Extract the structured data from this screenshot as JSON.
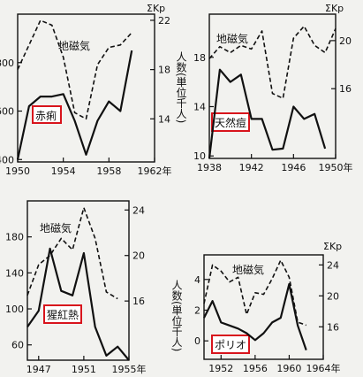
{
  "chart_data": [
    {
      "type": "line",
      "disease_label": "赤痢",
      "geomag_label": "地磁気",
      "right_axis_label": "ΣKp",
      "left_axis_label": "",
      "x_ticks": [
        "1950",
        "1954",
        "1958",
        "1962年"
      ],
      "left_ticks": [
        "400",
        "600",
        "800"
      ],
      "right_ticks": [
        "14",
        "18",
        "22"
      ],
      "xlim": [
        1950,
        1962
      ],
      "ylim_left": [
        390,
        1000
      ],
      "ylim_right": [
        10.5,
        22.5
      ],
      "series": [
        {
          "style": "solid",
          "axis": "left",
          "x": [
            1950,
            1951,
            1952,
            1953,
            1954,
            1955,
            1956,
            1957,
            1958,
            1959,
            1960
          ],
          "values": [
            400,
            620,
            660,
            660,
            670,
            560,
            420,
            560,
            640,
            600,
            850
          ]
        },
        {
          "style": "dashed",
          "axis": "right",
          "x": [
            1950,
            1951,
            1952,
            1953,
            1954,
            1955,
            1956,
            1957,
            1958,
            1959,
            1960
          ],
          "values": [
            18,
            20,
            22,
            21.6,
            19,
            14.5,
            14,
            18.4,
            19.8,
            20,
            21
          ]
        }
      ]
    },
    {
      "type": "line",
      "disease_label": "天然痘",
      "geomag_label": "地磁気",
      "right_axis_label": "ΣKp",
      "left_axis_label": "人数(単位千人)",
      "x_ticks": [
        "1938",
        "1942",
        "1946",
        "1950年"
      ],
      "left_ticks": [
        "10",
        "14",
        "18"
      ],
      "right_ticks": [
        "16",
        "20"
      ],
      "xlim": [
        1938,
        1950
      ],
      "ylim_left": [
        9.8,
        21.5
      ],
      "ylim_right": [
        10.2,
        22.2
      ],
      "series": [
        {
          "style": "solid",
          "axis": "left",
          "x": [
            1938,
            1939,
            1940,
            1941,
            1942,
            1943,
            1944,
            1945,
            1946,
            1947,
            1948,
            1949
          ],
          "values": [
            9.8,
            17,
            16,
            16.6,
            13,
            13,
            10.5,
            10.6,
            14,
            13,
            13.4,
            10.6
          ]
        },
        {
          "style": "dashed",
          "axis": "right",
          "x": [
            1938,
            1939,
            1940,
            1941,
            1942,
            1943,
            1944,
            1945,
            1946,
            1947,
            1948,
            1949,
            1950
          ],
          "values": [
            18.5,
            19.5,
            19,
            19.6,
            19.3,
            20.8,
            15.6,
            15.2,
            20.2,
            21.2,
            19.6,
            19,
            21
          ]
        }
      ]
    },
    {
      "type": "line",
      "disease_label": "猩紅熱",
      "geomag_label": "地磁気",
      "right_axis_label": "",
      "left_axis_label": "",
      "x_ticks": [
        "1947",
        "1951",
        "1955年"
      ],
      "left_ticks": [
        "60",
        "100",
        "140",
        "180"
      ],
      "right_ticks": [
        "16",
        "20",
        "24"
      ],
      "xlim": [
        1946,
        1955
      ],
      "ylim_left": [
        43,
        220
      ],
      "ylim_right": [
        10.8,
        24.8
      ],
      "series": [
        {
          "style": "solid",
          "axis": "left",
          "x": [
            1946,
            1947,
            1948,
            1949,
            1950,
            1951,
            1952,
            1953,
            1954,
            1955
          ],
          "values": [
            80,
            98,
            167,
            120,
            115,
            162,
            80,
            48,
            58,
            43
          ]
        },
        {
          "style": "dashed",
          "axis": "right",
          "x": [
            1946,
            1947,
            1948,
            1949,
            1950,
            1951,
            1952,
            1953,
            1954
          ],
          "values": [
            16.5,
            19.2,
            20,
            21.5,
            20.5,
            24.2,
            21.5,
            16.8,
            16.2
          ]
        }
      ]
    },
    {
      "type": "line",
      "disease_label": "ポリオ",
      "geomag_label": "地磁気",
      "right_axis_label": "ΣKp",
      "left_axis_label": "人数(単位千人)",
      "x_ticks": [
        "1952",
        "1956",
        "1960",
        "1964年"
      ],
      "left_ticks": [
        "0",
        "2",
        "4"
      ],
      "right_ticks": [
        "16",
        "20",
        "24"
      ],
      "xlim": [
        1950,
        1964
      ],
      "ylim_left": [
        -1.2,
        5.6
      ],
      "ylim_right": [
        11.8,
        25.3
      ],
      "series": [
        {
          "style": "solid",
          "axis": "left",
          "x": [
            1950,
            1951,
            1952,
            1953,
            1954,
            1955,
            1956,
            1957,
            1958,
            1959,
            1960,
            1961,
            1962
          ],
          "values": [
            1.5,
            2.6,
            1.2,
            1.0,
            0.8,
            0.5,
            0.05,
            0.5,
            1.2,
            1.5,
            3.7,
            1.0,
            -0.6
          ]
        },
        {
          "style": "dashed",
          "axis": "right",
          "x": [
            1950,
            1951,
            1952,
            1953,
            1954,
            1955,
            1956,
            1957,
            1958,
            1959,
            1960,
            1961,
            1962
          ],
          "values": [
            19,
            24,
            23.2,
            21.8,
            22.4,
            17.6,
            20.4,
            20.2,
            22.2,
            24.6,
            22.4,
            16.6,
            16.2
          ]
        }
      ]
    }
  ]
}
